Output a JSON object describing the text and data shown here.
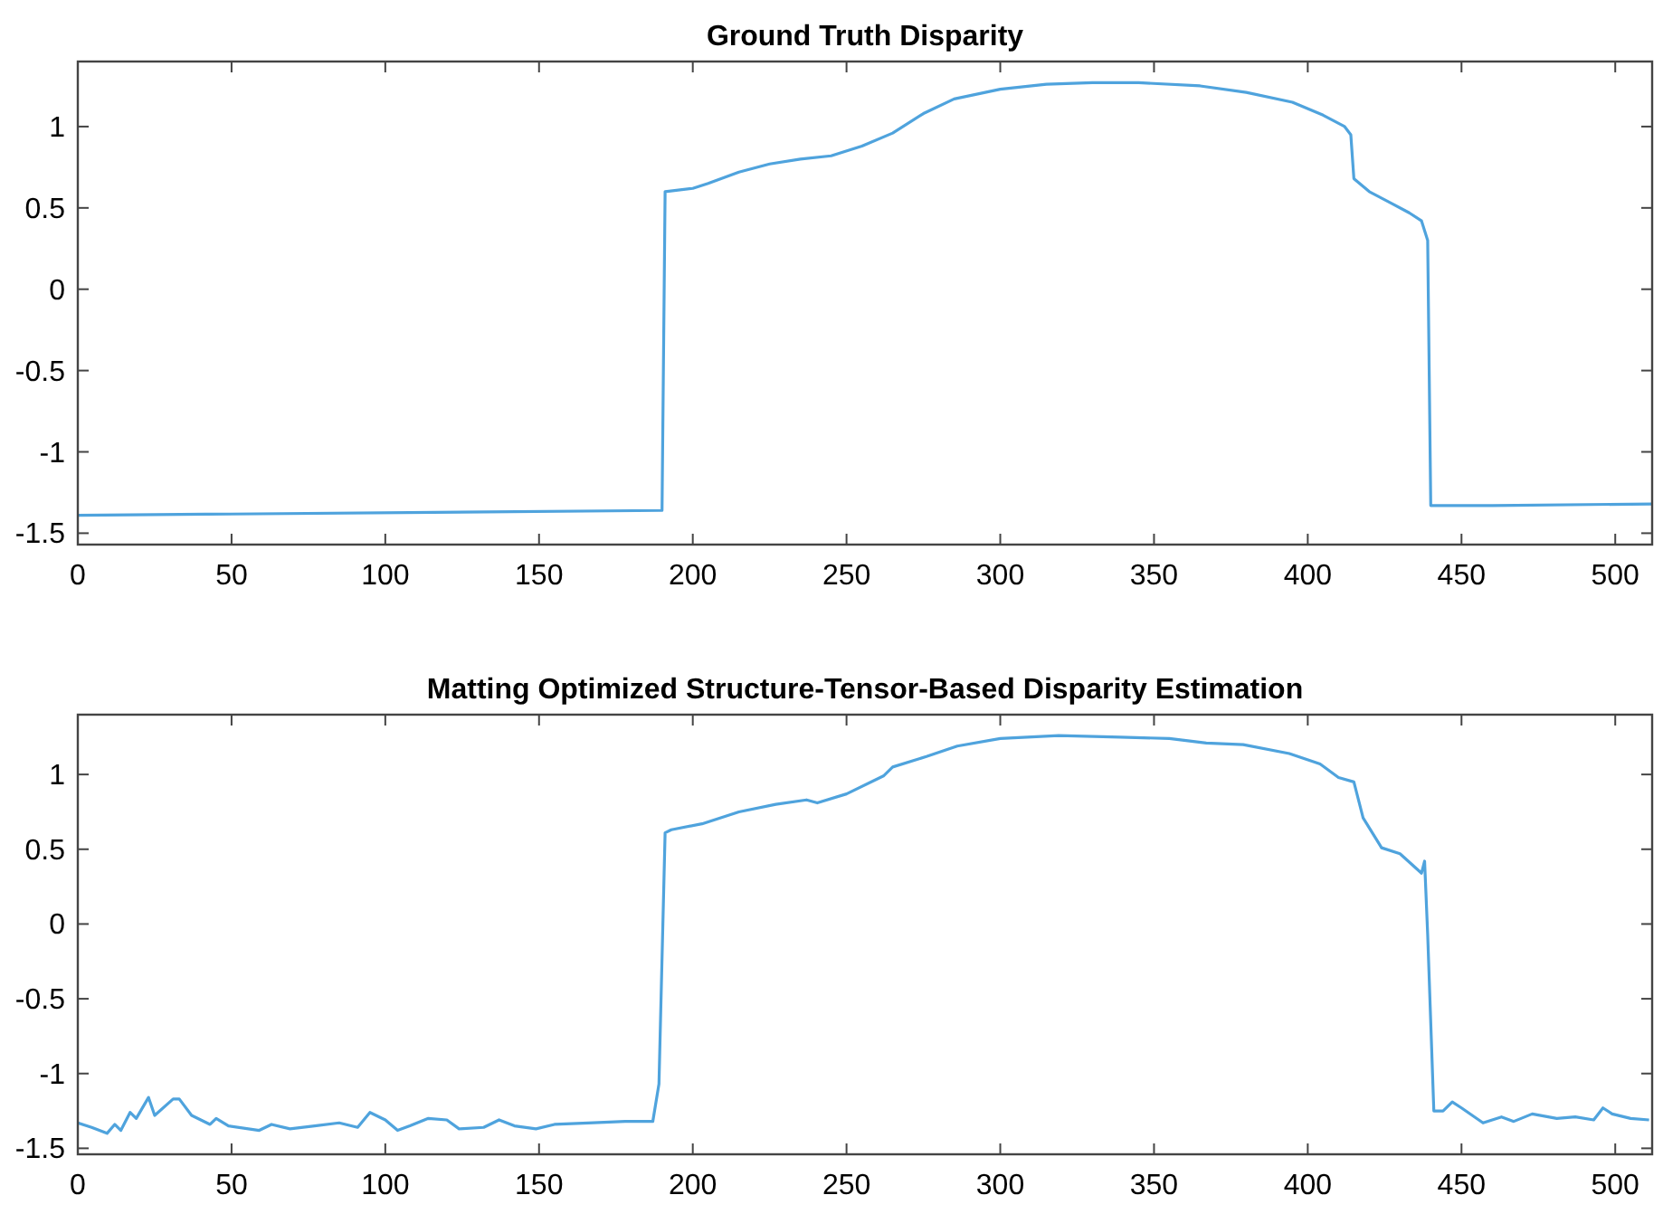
{
  "chart_data": [
    {
      "type": "line",
      "title": "Ground Truth Disparity",
      "xlim": [
        0,
        512
      ],
      "ylim": [
        -1.57,
        1.4
      ],
      "xticks": [
        0,
        50,
        100,
        150,
        200,
        250,
        300,
        350,
        400,
        450,
        500
      ],
      "yticks": [
        -1.5,
        -1,
        -0.5,
        0,
        0.5,
        1
      ],
      "series": [
        {
          "color": "#4fa3dd",
          "x": [
            0,
            190,
            191,
            200,
            205,
            215,
            225,
            235,
            245,
            255,
            265,
            275,
            285,
            300,
            315,
            330,
            345,
            365,
            380,
            395,
            405,
            412,
            414,
            415,
            420,
            427,
            433,
            437,
            439,
            440,
            460,
            512
          ],
          "values": [
            -1.39,
            -1.36,
            0.6,
            0.62,
            0.65,
            0.72,
            0.77,
            0.8,
            0.82,
            0.88,
            0.96,
            1.08,
            1.17,
            1.23,
            1.26,
            1.27,
            1.27,
            1.25,
            1.21,
            1.15,
            1.07,
            1.0,
            0.95,
            0.68,
            0.6,
            0.53,
            0.47,
            0.42,
            0.3,
            -1.33,
            -1.33,
            -1.32
          ]
        }
      ]
    },
    {
      "type": "line",
      "title": "Matting Optimized Structure-Tensor-Based Disparity Estimation",
      "xlim": [
        0,
        512
      ],
      "ylim": [
        -1.54,
        1.4
      ],
      "xticks": [
        0,
        50,
        100,
        150,
        200,
        250,
        300,
        350,
        400,
        450,
        500
      ],
      "yticks": [
        -1.5,
        -1,
        -0.5,
        0,
        0.5,
        1
      ],
      "series": [
        {
          "color": "#4fa3dd",
          "x": [
            0,
            4.5,
            9.5,
            12,
            14,
            17,
            19,
            23,
            25,
            31,
            33,
            37,
            43,
            45,
            49,
            59,
            63,
            69,
            77,
            85,
            91,
            95,
            100,
            104,
            108,
            114,
            120,
            124,
            132,
            137,
            142,
            149,
            155,
            166,
            178,
            187,
            189,
            191,
            193,
            203,
            215,
            227,
            237,
            240.5,
            250,
            262,
            265,
            276,
            286,
            300,
            319,
            339,
            355,
            367,
            379,
            394,
            404,
            410,
            415,
            418,
            424,
            430,
            437,
            438,
            439,
            441,
            444,
            447,
            450,
            457,
            463,
            467,
            473,
            481,
            487,
            493,
            496,
            499,
            505,
            511
          ],
          "values": [
            -1.33,
            -1.36,
            -1.4,
            -1.34,
            -1.38,
            -1.26,
            -1.3,
            -1.16,
            -1.28,
            -1.17,
            -1.17,
            -1.28,
            -1.34,
            -1.3,
            -1.35,
            -1.38,
            -1.34,
            -1.37,
            -1.35,
            -1.33,
            -1.36,
            -1.26,
            -1.31,
            -1.38,
            -1.35,
            -1.3,
            -1.31,
            -1.37,
            -1.36,
            -1.31,
            -1.35,
            -1.37,
            -1.34,
            -1.33,
            -1.32,
            -1.32,
            -1.07,
            0.61,
            0.63,
            0.67,
            0.75,
            0.8,
            0.83,
            0.81,
            0.87,
            0.99,
            1.05,
            1.12,
            1.19,
            1.24,
            1.26,
            1.25,
            1.24,
            1.21,
            1.2,
            1.14,
            1.07,
            0.98,
            0.95,
            0.71,
            0.51,
            0.47,
            0.34,
            0.42,
            -0.07,
            -1.25,
            -1.25,
            -1.19,
            -1.23,
            -1.33,
            -1.29,
            -1.32,
            -1.27,
            -1.3,
            -1.29,
            -1.31,
            -1.23,
            -1.27,
            -1.3,
            -1.31
          ]
        }
      ]
    }
  ]
}
